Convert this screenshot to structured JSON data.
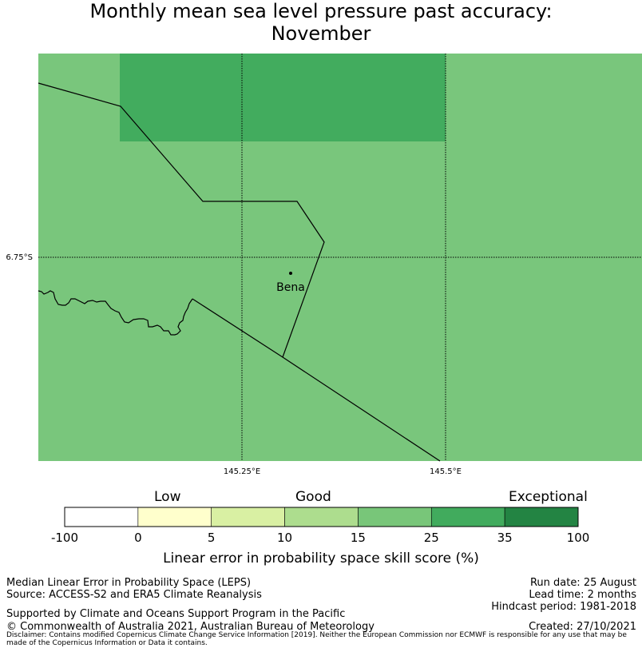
{
  "title_line1": "Monthly mean sea level pressure past accuracy:",
  "title_line2": "November",
  "map": {
    "lat_label": "6.75°S",
    "lon_labels": [
      "145.25°E",
      "145.5°E"
    ],
    "place": "Bena",
    "cell_colors": {
      "base": "#79c67c",
      "high": "#42ac5e"
    }
  },
  "colorbar": {
    "category_labels": [
      "Low",
      "Good",
      "Exceptional"
    ],
    "ticks": [
      "-100",
      "0",
      "5",
      "10",
      "15",
      "25",
      "35",
      "100"
    ],
    "colors": [
      "#ffffff",
      "#ffffcc",
      "#d9f0a3",
      "#addd8e",
      "#78c679",
      "#41ab5d",
      "#238443"
    ],
    "caption": "Linear error in probability space skill score (%)"
  },
  "footer": {
    "left1": "Median Linear Error in Probability Space (LEPS)",
    "left2": "Source: ACCESS-S2 and ERA5 Climate Reanalysis",
    "support": "Supported by Climate and Oceans Support Program in the Pacific",
    "copyright": "© Commonwealth of Australia 2021, Australian Bureau of Meteorology",
    "run_date": "Run date: 25 August",
    "lead_time": "Lead time: 2 months",
    "hindcast": "Hindcast period: 1981-2018",
    "created": "Created: 27/10/2021",
    "disclaimer": "Disclaimer: Contains modified Copernicus Climate Change Service Information [2019]. Neither the European Commission nor ECMWF is responsible for any use that may be made of the Copernicus Information or Data it contains."
  }
}
